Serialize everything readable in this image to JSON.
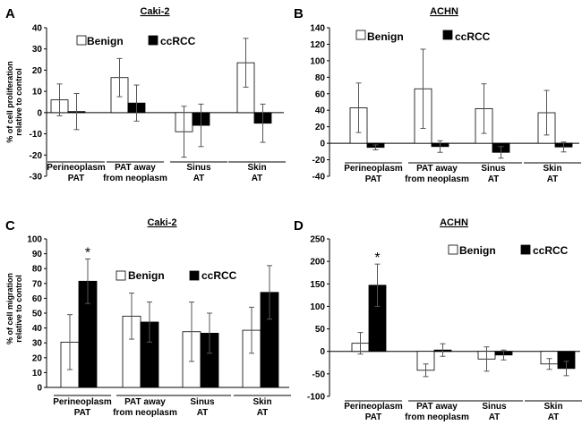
{
  "chart_data": [
    {
      "panel": "A",
      "type": "bar",
      "title": "Caki-2",
      "ylabel": "% of cell proliferation relative to control",
      "ylabel_lines": [
        "% of cell proliferation",
        "relative to control"
      ],
      "xlabel": "",
      "ylim": [
        -30,
        40
      ],
      "yticks": [
        -30,
        -20,
        -10,
        0,
        10,
        20,
        30,
        40
      ],
      "categories": [
        [
          "Perineoplasm",
          "PAT"
        ],
        [
          "PAT away",
          "from neoplasm"
        ],
        [
          "Sinus",
          "AT"
        ],
        [
          "Skin",
          "AT"
        ]
      ],
      "series": [
        {
          "name": "Benign",
          "values": [
            6,
            16.5,
            -9,
            23.5
          ],
          "err": [
            7.5,
            9,
            12,
            11.5
          ]
        },
        {
          "name": "ccRCC",
          "values": [
            0.5,
            4.5,
            -6,
            -5
          ],
          "err": [
            8.5,
            8.5,
            10,
            9
          ]
        }
      ],
      "significant": [],
      "legend": [
        "Benign",
        "ccRCC"
      ]
    },
    {
      "panel": "B",
      "type": "bar",
      "title": "ACHN",
      "ylabel": "",
      "ylabel_lines": [],
      "xlabel": "",
      "ylim": [
        -40,
        140
      ],
      "yticks": [
        -40,
        -20,
        0,
        20,
        40,
        60,
        80,
        100,
        120,
        140
      ],
      "categories": [
        [
          "Perineoplasm",
          "PAT"
        ],
        [
          "PAT away",
          "from neoplasm"
        ],
        [
          "Sinus",
          "AT"
        ],
        [
          "Skin",
          "AT"
        ]
      ],
      "series": [
        {
          "name": "Benign",
          "values": [
            43,
            66,
            42,
            37
          ],
          "err": [
            30,
            48,
            30,
            27
          ]
        },
        {
          "name": "ccRCC",
          "values": [
            -5,
            -4,
            -11,
            -4.5
          ],
          "err": [
            3,
            7,
            7,
            6
          ]
        }
      ],
      "significant": [],
      "legend": [
        "Benign",
        "ccRCC"
      ]
    },
    {
      "panel": "C",
      "type": "bar",
      "title": "Caki-2",
      "ylabel": "% of cell migration relative to control",
      "ylabel_lines": [
        "% of cell migration",
        "relative to control"
      ],
      "xlabel": "",
      "ylim": [
        0,
        100
      ],
      "yticks": [
        0,
        10,
        20,
        30,
        40,
        50,
        60,
        70,
        80,
        90,
        100
      ],
      "categories": [
        [
          "Perineoplasm",
          "PAT"
        ],
        [
          "PAT away",
          "from neoplasm"
        ],
        [
          "Sinus",
          "AT"
        ],
        [
          "Skin",
          "AT"
        ]
      ],
      "series": [
        {
          "name": "Benign",
          "values": [
            30.5,
            48,
            37.5,
            38.5
          ],
          "err": [
            18.5,
            15.5,
            20,
            15.5
          ]
        },
        {
          "name": "ccRCC",
          "values": [
            71.5,
            44,
            36.5,
            64
          ],
          "err": [
            15,
            13.5,
            13.5,
            18
          ]
        }
      ],
      "significant": [
        1
      ],
      "significance_marker": "*",
      "legend": [
        "Benign",
        "ccRCC"
      ]
    },
    {
      "panel": "D",
      "type": "bar",
      "title": "ACHN",
      "ylabel": "",
      "ylabel_lines": [],
      "xlabel": "",
      "ylim": [
        -100,
        250
      ],
      "yticks": [
        -100,
        -50,
        0,
        50,
        100,
        150,
        200,
        250
      ],
      "categories": [
        [
          "Perineoplasm",
          "PAT"
        ],
        [
          "PAT away",
          "from neoplasm"
        ],
        [
          "Sinus",
          "AT"
        ],
        [
          "Skin",
          "AT"
        ]
      ],
      "series": [
        {
          "name": "Benign",
          "values": [
            18,
            -42,
            -17,
            -28
          ],
          "err": [
            24,
            14,
            27,
            12
          ]
        },
        {
          "name": "ccRCC",
          "values": [
            147,
            3,
            -8,
            -38
          ],
          "err": [
            47,
            14,
            11,
            16
          ]
        }
      ],
      "significant": [
        1
      ],
      "significance_marker": "*",
      "legend": [
        "Benign",
        "ccRCC"
      ]
    }
  ]
}
